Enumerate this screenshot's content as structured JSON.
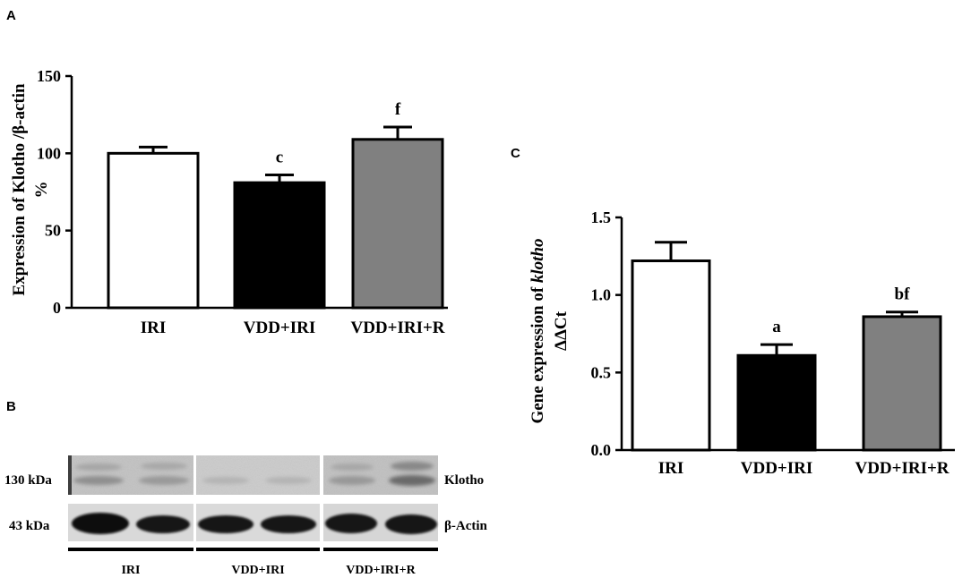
{
  "panel_labels": {
    "a": "A",
    "b": "B",
    "c": "C"
  },
  "chart_data": [
    {
      "type": "bar",
      "panel": "A",
      "categories": [
        "IRI",
        "VDD+IRI",
        "VDD+IRI+R"
      ],
      "values": [
        100,
        81,
        109
      ],
      "errors": [
        4,
        5,
        8
      ],
      "significance": [
        "",
        "c",
        "f"
      ],
      "bar_colors": [
        "#ffffff",
        "#000000",
        "#808080"
      ],
      "ylabel_line1": "Expression of Klotho /β-actin",
      "ylabel_line2": "%",
      "ylim": [
        0,
        150
      ],
      "yticks": [
        0,
        50,
        100,
        150
      ],
      "ytick_labels": [
        "0",
        "50",
        "100",
        "150"
      ]
    },
    {
      "type": "bar",
      "panel": "C",
      "categories": [
        "IRI",
        "VDD+IRI",
        "VDD+IRI+R"
      ],
      "values": [
        1.22,
        0.61,
        0.86
      ],
      "errors": [
        0.12,
        0.07,
        0.03
      ],
      "significance": [
        "",
        "a",
        "bf"
      ],
      "bar_colors": [
        "#ffffff",
        "#000000",
        "#808080"
      ],
      "ylabel_prefix": "Gene expression of ",
      "ylabel_italic": "klotho",
      "ylabel_line2": "ΔΔCt",
      "ylim": [
        0,
        1.5
      ],
      "yticks": [
        0,
        0.5,
        1.0,
        1.5
      ],
      "ytick_labels": [
        "0.0",
        "0.5",
        "1.0",
        "1.5"
      ]
    }
  ],
  "blot": {
    "rows": [
      {
        "size": "130 kDa",
        "protein": "Klotho"
      },
      {
        "size": "43 kDa",
        "protein": "β-Actin"
      }
    ],
    "groups": [
      "IRI",
      "VDD+IRI",
      "VDD+IRI+R"
    ]
  }
}
